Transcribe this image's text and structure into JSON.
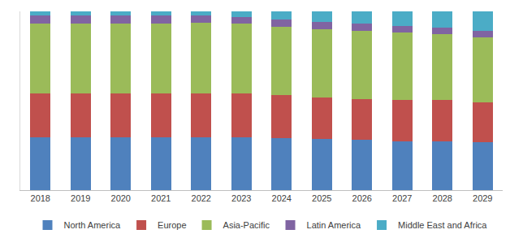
{
  "chart_data": {
    "type": "bar",
    "stacked": true,
    "legend": "bottom",
    "tick_labels": "x",
    "grid": false,
    "categories": [
      "2018",
      "2019",
      "2020",
      "2021",
      "2022",
      "2023",
      "2024",
      "2025",
      "2026",
      "2027",
      "2028",
      "2029"
    ],
    "ylim": [
      0,
      100
    ],
    "series": [
      {
        "name": "North America",
        "color": "#4f81bd",
        "values": [
          29.5,
          29.5,
          29.5,
          29.5,
          29.5,
          29.5,
          29,
          28.5,
          28,
          27.5,
          27.5,
          27
        ]
      },
      {
        "name": "Europe",
        "color": "#c0504d",
        "values": [
          24.5,
          24.5,
          24.8,
          24.8,
          24.8,
          24.5,
          24,
          23.5,
          23,
          23,
          23,
          22.3
        ]
      },
      {
        "name": "Asia-Pacific",
        "color": "#9bbb59",
        "values": [
          39.3,
          39.3,
          39.0,
          39.0,
          39.5,
          39.0,
          38.5,
          38.0,
          38.0,
          37.5,
          37.0,
          36.2
        ]
      },
      {
        "name": "Latin America",
        "color": "#8064a2",
        "values": [
          4.5,
          4.5,
          4.5,
          4.5,
          4,
          4,
          4,
          4,
          4,
          4,
          3.5,
          3.5
        ]
      },
      {
        "name": "Middle East and Africa",
        "color": "#4bacc6",
        "values": [
          2.2,
          2.2,
          2.2,
          2.2,
          2.2,
          3,
          4.5,
          6,
          7,
          8,
          9,
          11
        ]
      }
    ]
  }
}
